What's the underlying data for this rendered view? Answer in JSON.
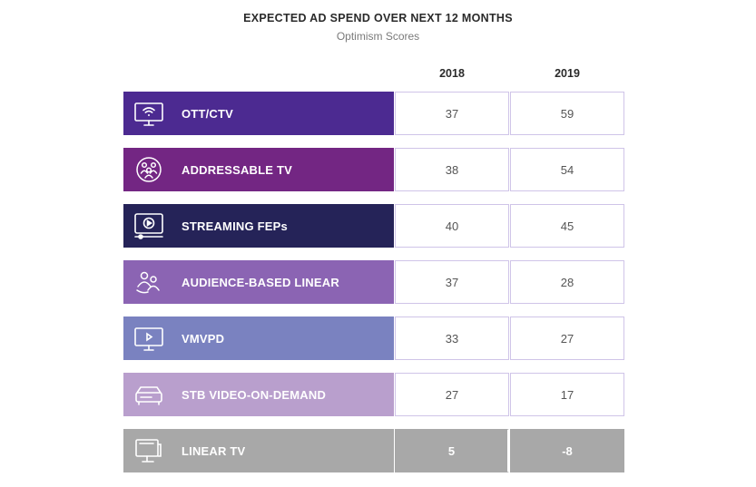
{
  "chart_data": {
    "type": "table",
    "title": "EXPECTED AD SPEND OVER NEXT 12 MONTHS",
    "subtitle": "Optimism Scores",
    "columns": [
      "2018",
      "2019"
    ],
    "rows": [
      {
        "label": "OTT/CTV",
        "icon": "tv-wifi-icon",
        "color": "#4c2a91",
        "values": [
          "37",
          "59"
        ]
      },
      {
        "label": "ADDRESSABLE TV",
        "icon": "audience-circle-icon",
        "color": "#732683",
        "values": [
          "38",
          "54"
        ]
      },
      {
        "label": "STREAMING FEPs",
        "icon": "video-player-icon",
        "color": "#252358",
        "values": [
          "40",
          "45"
        ]
      },
      {
        "label": "AUDIENCE-BASED LINEAR",
        "icon": "audience-group-icon",
        "color": "#8b64b3",
        "values": [
          "37",
          "28"
        ]
      },
      {
        "label": "VMVPD",
        "icon": "tv-play-icon",
        "color": "#7a82c0",
        "values": [
          "33",
          "27"
        ]
      },
      {
        "label": "STB VIDEO-ON-DEMAND",
        "icon": "set-top-box-icon",
        "color": "#b99fcd",
        "values": [
          "27",
          "17"
        ]
      },
      {
        "label": "LINEAR TV",
        "icon": "desktop-tv-icon",
        "color": "#a8a8a8",
        "values": [
          "5",
          "-8"
        ]
      }
    ]
  }
}
